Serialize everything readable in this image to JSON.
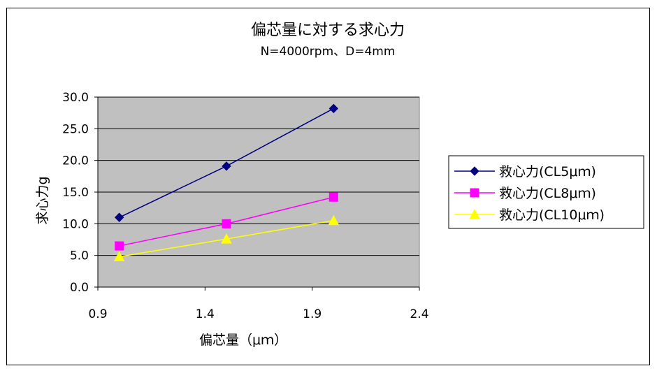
{
  "chart_data": {
    "type": "line",
    "title": "偏芯量に対する求心力",
    "subtitle": "N=4000rpm、D=4mm",
    "xlabel": "偏芯量（μｍ）",
    "ylabel": "求心力g",
    "xlim": [
      0.9,
      2.4
    ],
    "ylim": [
      0,
      30
    ],
    "xticks": [
      0.9,
      1.4,
      1.9,
      2.4
    ],
    "xtick_labels": [
      "0.9",
      "1.4",
      "1.9",
      "2.4"
    ],
    "yticks": [
      0,
      5,
      10,
      15,
      20,
      25,
      30
    ],
    "ytick_labels": [
      "0.0",
      "5.0",
      "10.0",
      "15.0",
      "20.0",
      "25.0",
      "30.0"
    ],
    "grid": "horizontal",
    "plot_background": "#c0c0c0",
    "legend_position": "right",
    "series": [
      {
        "name": "救心力(CL5μｍ)",
        "color": "#000080",
        "marker": "diamond",
        "x": [
          1.0,
          1.5,
          2.0
        ],
        "values": [
          11.0,
          19.1,
          28.2
        ]
      },
      {
        "name": "救心力(CL8μｍ)",
        "color": "#ff00ff",
        "marker": "square",
        "x": [
          1.0,
          1.5,
          2.0
        ],
        "values": [
          6.5,
          10.0,
          14.2
        ]
      },
      {
        "name": "救心力(CL10μｍ)",
        "color": "#ffff00",
        "marker": "triangle",
        "x": [
          1.0,
          1.5,
          2.0
        ],
        "values": [
          4.8,
          7.6,
          10.5
        ]
      }
    ]
  }
}
